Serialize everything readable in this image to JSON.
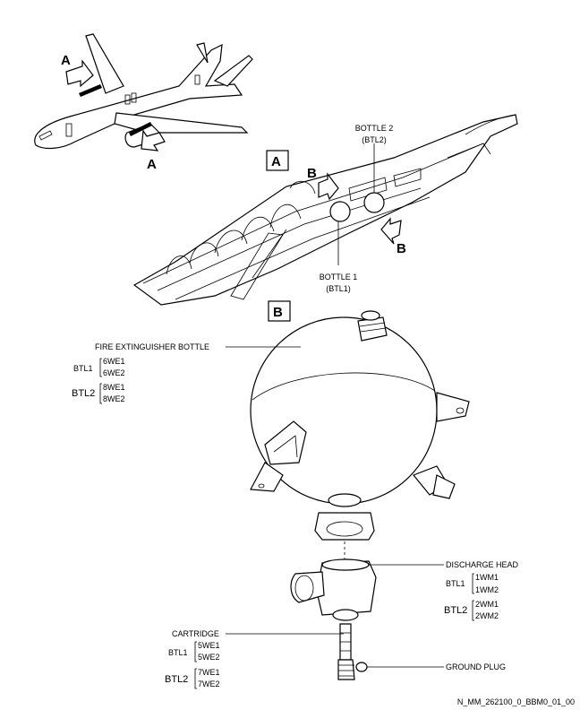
{
  "view_labels": {
    "view_a": "A",
    "view_b": "B"
  },
  "section1": {
    "bottle2_label": "BOTTLE 2",
    "bottle2_sub": "(BTL2)",
    "bottle1_label": "BOTTLE 1",
    "bottle1_sub": "(BTL1)"
  },
  "section2": {
    "fire_bottle_label": "FIRE EXTINGUISHER BOTTLE",
    "fire_bottle_codes": {
      "btl1": {
        "name": "BTL1",
        "codes": [
          "6WE1",
          "6WE2"
        ]
      },
      "btl2": {
        "name": "BTL2",
        "codes": [
          "8WE1",
          "8WE2"
        ]
      }
    },
    "discharge_head_label": "DISCHARGE HEAD",
    "discharge_head_codes": {
      "btl1": {
        "name": "BTL1",
        "codes": [
          "1WM1",
          "1WM2"
        ]
      },
      "btl2": {
        "name": "BTL2",
        "codes": [
          "2WM1",
          "2WM2"
        ]
      }
    },
    "cartridge_label": "CARTRIDGE",
    "cartridge_codes": {
      "btl1": {
        "name": "BTL1",
        "codes": [
          "5WE1",
          "5WE2"
        ]
      },
      "btl2": {
        "name": "BTL2",
        "codes": [
          "7WE1",
          "7WE2"
        ]
      }
    },
    "ground_plug_label": "GROUND PLUG"
  },
  "footer_ref": "N_MM_262100_0_BBM0_01_00"
}
